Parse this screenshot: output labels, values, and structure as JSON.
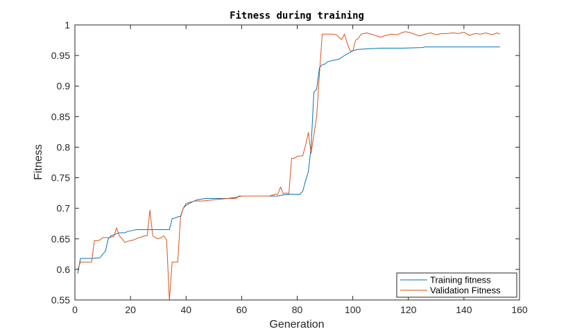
{
  "chart_data": {
    "type": "line",
    "title": "Fitness during training",
    "xlabel": "Generation",
    "ylabel": "Fitness",
    "xlim": [
      0,
      160
    ],
    "ylim": [
      0.55,
      1
    ],
    "xticks": [
      "0",
      "20",
      "40",
      "60",
      "80",
      "100",
      "120",
      "140",
      "160"
    ],
    "yticks": [
      "0.55",
      "0.6",
      "0.65",
      "0.7",
      "0.75",
      "0.8",
      "0.85",
      "0.9",
      "0.95",
      "1"
    ],
    "grid": false,
    "legend_position": "bottom-right",
    "series": [
      {
        "name": "Training fitness",
        "color": "#0072BD",
        "points": [
          [
            1,
            0.593
          ],
          [
            2,
            0.618
          ],
          [
            5,
            0.618
          ],
          [
            6,
            0.618
          ],
          [
            9,
            0.619
          ],
          [
            10,
            0.625
          ],
          [
            11,
            0.63
          ],
          [
            12,
            0.65
          ],
          [
            13,
            0.655
          ],
          [
            16,
            0.66
          ],
          [
            18,
            0.66
          ],
          [
            19,
            0.662
          ],
          [
            21,
            0.664
          ],
          [
            22,
            0.665
          ],
          [
            24,
            0.665
          ],
          [
            30,
            0.665
          ],
          [
            33,
            0.665
          ],
          [
            34,
            0.665
          ],
          [
            35,
            0.683
          ],
          [
            36,
            0.684
          ],
          [
            37,
            0.686
          ],
          [
            38,
            0.687
          ],
          [
            39,
            0.7
          ],
          [
            40,
            0.705
          ],
          [
            42,
            0.71
          ],
          [
            44,
            0.714
          ],
          [
            47,
            0.716
          ],
          [
            55,
            0.716
          ],
          [
            58,
            0.718
          ],
          [
            60,
            0.72
          ],
          [
            65,
            0.72
          ],
          [
            73,
            0.72
          ],
          [
            75,
            0.722
          ],
          [
            77,
            0.723
          ],
          [
            80,
            0.723
          ],
          [
            81,
            0.723
          ],
          [
            82,
            0.728
          ],
          [
            83,
            0.745
          ],
          [
            84,
            0.76
          ],
          [
            85,
            0.8
          ],
          [
            86,
            0.89
          ],
          [
            87,
            0.895
          ],
          [
            88,
            0.93
          ],
          [
            89,
            0.935
          ],
          [
            90,
            0.936
          ],
          [
            91,
            0.94
          ],
          [
            93,
            0.942
          ],
          [
            95,
            0.944
          ],
          [
            97,
            0.95
          ],
          [
            99,
            0.955
          ],
          [
            100,
            0.958
          ],
          [
            102,
            0.96
          ],
          [
            106,
            0.961
          ],
          [
            110,
            0.962
          ],
          [
            118,
            0.962
          ],
          [
            125,
            0.963
          ],
          [
            126,
            0.964
          ],
          [
            153,
            0.964
          ]
        ]
      },
      {
        "name": "Validation Fitness",
        "color": "#D95319",
        "points": [
          [
            1,
            0.6
          ],
          [
            2,
            0.612
          ],
          [
            5,
            0.612
          ],
          [
            6,
            0.612
          ],
          [
            7,
            0.647
          ],
          [
            8,
            0.647
          ],
          [
            9,
            0.648
          ],
          [
            10,
            0.652
          ],
          [
            12,
            0.652
          ],
          [
            13,
            0.653
          ],
          [
            14,
            0.654
          ],
          [
            15,
            0.668
          ],
          [
            16,
            0.655
          ],
          [
            17,
            0.65
          ],
          [
            18,
            0.644
          ],
          [
            19,
            0.646
          ],
          [
            20,
            0.647
          ],
          [
            21,
            0.648
          ],
          [
            22,
            0.65
          ],
          [
            23,
            0.652
          ],
          [
            24,
            0.653
          ],
          [
            25,
            0.655
          ],
          [
            26,
            0.655
          ],
          [
            27,
            0.697
          ],
          [
            28,
            0.655
          ],
          [
            29,
            0.652
          ],
          [
            30,
            0.65
          ],
          [
            31,
            0.652
          ],
          [
            32,
            0.655
          ],
          [
            33,
            0.648
          ],
          [
            34,
            0.55
          ],
          [
            35,
            0.612
          ],
          [
            37,
            0.612
          ],
          [
            38,
            0.685
          ],
          [
            39,
            0.7
          ],
          [
            40,
            0.708
          ],
          [
            43,
            0.712
          ],
          [
            46,
            0.712
          ],
          [
            50,
            0.714
          ],
          [
            55,
            0.716
          ],
          [
            58,
            0.716
          ],
          [
            59,
            0.72
          ],
          [
            60,
            0.72
          ],
          [
            62,
            0.72
          ],
          [
            70,
            0.72
          ],
          [
            72,
            0.723
          ],
          [
            73,
            0.723
          ],
          [
            74,
            0.735
          ],
          [
            75,
            0.724
          ],
          [
            76,
            0.725
          ],
          [
            77,
            0.724
          ],
          [
            78,
            0.782
          ],
          [
            79,
            0.782
          ],
          [
            80,
            0.785
          ],
          [
            82,
            0.786
          ],
          [
            83,
            0.803
          ],
          [
            84,
            0.824
          ],
          [
            85,
            0.79
          ],
          [
            86,
            0.82
          ],
          [
            87,
            0.85
          ],
          [
            88,
            0.92
          ],
          [
            89,
            0.985
          ],
          [
            93,
            0.985
          ],
          [
            94,
            0.984
          ],
          [
            95,
            0.98
          ],
          [
            96,
            0.976
          ],
          [
            97,
            0.985
          ],
          [
            98,
            0.97
          ],
          [
            99,
            0.958
          ],
          [
            100,
            0.957
          ],
          [
            101,
            0.975
          ],
          [
            102,
            0.978
          ],
          [
            103,
            0.985
          ],
          [
            105,
            0.987
          ],
          [
            108,
            0.983
          ],
          [
            110,
            0.98
          ],
          [
            112,
            0.983
          ],
          [
            114,
            0.985
          ],
          [
            116,
            0.984
          ],
          [
            118,
            0.988
          ],
          [
            119,
            0.989
          ],
          [
            121,
            0.987
          ],
          [
            122,
            0.985
          ],
          [
            124,
            0.982
          ],
          [
            126,
            0.985
          ],
          [
            128,
            0.987
          ],
          [
            130,
            0.984
          ],
          [
            132,
            0.986
          ],
          [
            134,
            0.986
          ],
          [
            136,
            0.987
          ],
          [
            138,
            0.986
          ],
          [
            140,
            0.988
          ],
          [
            142,
            0.983
          ],
          [
            144,
            0.986
          ],
          [
            146,
            0.985
          ],
          [
            148,
            0.987
          ],
          [
            150,
            0.984
          ],
          [
            152,
            0.987
          ],
          [
            153,
            0.985
          ]
        ]
      }
    ]
  }
}
